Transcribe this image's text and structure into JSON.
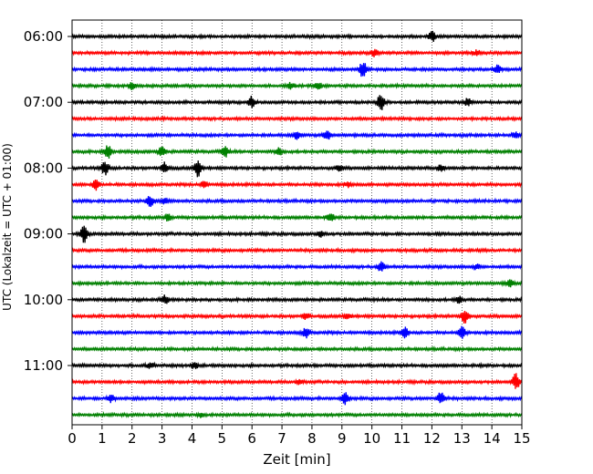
{
  "chart_data": {
    "type": "line",
    "xlabel": "Zeit  [min]",
    "ylabel": "UTC (Lokalzeit = UTC + 01:00)",
    "xlim": [
      0,
      15
    ],
    "x_ticks": [
      0,
      1,
      2,
      3,
      4,
      5,
      6,
      7,
      8,
      9,
      10,
      11,
      12,
      13,
      14,
      15
    ],
    "x_grid": true,
    "y_ticks": [
      "06:00",
      "07:00",
      "08:00",
      "09:00",
      "10:00",
      "11:00"
    ],
    "traces": [
      {
        "start": "06:00",
        "color": "#000000",
        "events": [
          [
            12,
            0.6
          ]
        ]
      },
      {
        "start": "06:15",
        "color": "#ff0000",
        "events": [
          [
            10.1,
            0.5
          ],
          [
            13.5,
            0.3
          ]
        ]
      },
      {
        "start": "06:30",
        "color": "#0000ff",
        "events": [
          [
            9.7,
            1.0
          ],
          [
            14.2,
            0.5
          ]
        ]
      },
      {
        "start": "06:45",
        "color": "#008000",
        "events": [
          [
            2.0,
            0.4
          ],
          [
            7.3,
            0.4
          ],
          [
            8.2,
            0.4
          ]
        ]
      },
      {
        "start": "07:00",
        "color": "#000000",
        "events": [
          [
            6.0,
            0.7
          ],
          [
            10.3,
            1.0
          ],
          [
            13.2,
            0.5
          ]
        ]
      },
      {
        "start": "07:15",
        "color": "#ff0000",
        "events": []
      },
      {
        "start": "07:30",
        "color": "#0000ff",
        "events": [
          [
            7.5,
            0.5
          ],
          [
            8.5,
            0.6
          ],
          [
            14.8,
            0.4
          ]
        ]
      },
      {
        "start": "07:45",
        "color": "#008000",
        "events": [
          [
            1.2,
            0.8
          ],
          [
            3.0,
            0.6
          ],
          [
            5.1,
            0.6
          ],
          [
            6.9,
            0.4
          ]
        ]
      },
      {
        "start": "08:00",
        "color": "#000000",
        "events": [
          [
            1.1,
            0.9
          ],
          [
            3.1,
            0.7
          ],
          [
            4.2,
            1.0
          ],
          [
            8.9,
            0.4
          ],
          [
            12.3,
            0.4
          ]
        ]
      },
      {
        "start": "08:15",
        "color": "#ff0000",
        "events": [
          [
            0.8,
            0.6
          ],
          [
            4.4,
            0.4
          ],
          [
            9.2,
            0.3
          ]
        ]
      },
      {
        "start": "08:30",
        "color": "#0000ff",
        "events": [
          [
            2.6,
            0.7
          ],
          [
            3.1,
            0.4
          ]
        ]
      },
      {
        "start": "08:45",
        "color": "#008000",
        "events": [
          [
            3.2,
            0.4
          ],
          [
            8.6,
            0.5
          ]
        ]
      },
      {
        "start": "09:00",
        "color": "#000000",
        "events": [
          [
            0.4,
            1.0
          ],
          [
            8.3,
            0.3
          ]
        ]
      },
      {
        "start": "09:15",
        "color": "#ff0000",
        "events": []
      },
      {
        "start": "09:30",
        "color": "#0000ff",
        "events": [
          [
            10.3,
            0.6
          ],
          [
            13.5,
            0.3
          ]
        ]
      },
      {
        "start": "09:45",
        "color": "#008000",
        "events": [
          [
            14.6,
            0.4
          ]
        ]
      },
      {
        "start": "10:00",
        "color": "#000000",
        "events": [
          [
            3.1,
            0.5
          ],
          [
            12.9,
            0.4
          ]
        ]
      },
      {
        "start": "10:15",
        "color": "#ff0000",
        "events": [
          [
            7.8,
            0.4
          ],
          [
            13.1,
            1.0
          ],
          [
            9.2,
            0.3
          ]
        ]
      },
      {
        "start": "10:30",
        "color": "#0000ff",
        "events": [
          [
            7.8,
            0.6
          ],
          [
            11.1,
            0.6
          ],
          [
            13.0,
            0.7
          ]
        ]
      },
      {
        "start": "10:45",
        "color": "#008000",
        "events": []
      },
      {
        "start": "11:00",
        "color": "#000000",
        "events": [
          [
            2.6,
            0.4
          ],
          [
            4.1,
            0.4
          ]
        ]
      },
      {
        "start": "11:15",
        "color": "#ff0000",
        "events": [
          [
            7.6,
            0.3
          ],
          [
            14.8,
            1.0
          ]
        ]
      },
      {
        "start": "11:30",
        "color": "#0000ff",
        "events": [
          [
            1.3,
            0.5
          ],
          [
            9.1,
            0.7
          ],
          [
            12.3,
            0.8
          ]
        ]
      },
      {
        "start": "11:45",
        "color": "#008000",
        "events": [
          [
            4.3,
            0.3
          ]
        ]
      }
    ]
  }
}
